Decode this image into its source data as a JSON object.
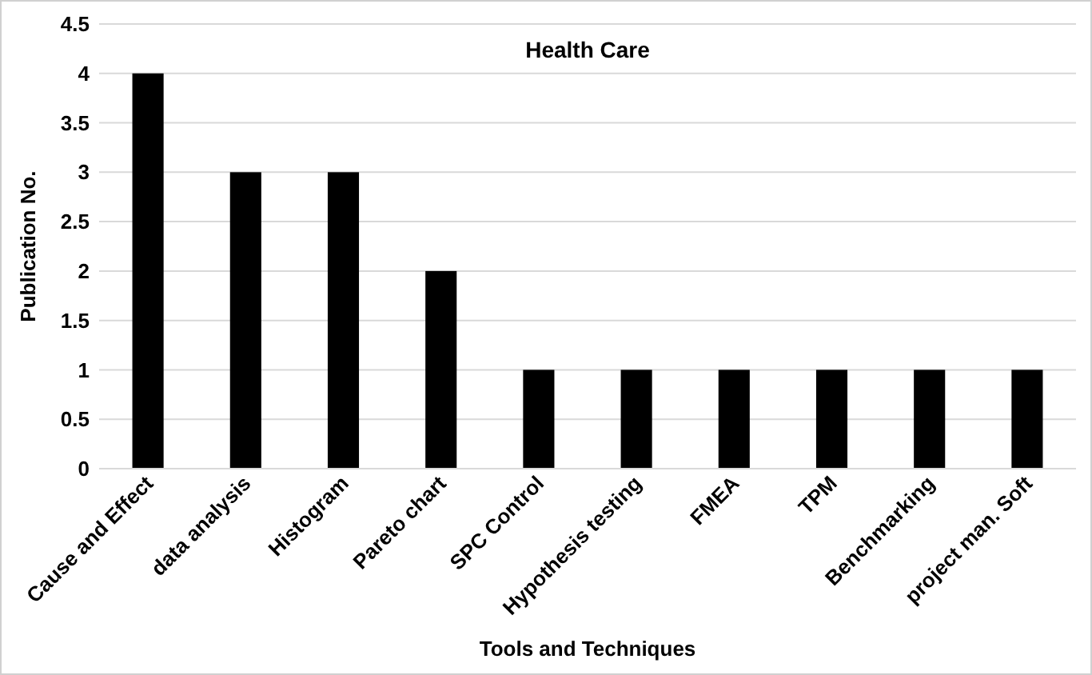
{
  "chart_data": {
    "type": "bar",
    "title": "Health Care",
    "xlabel": "Tools and Techniques",
    "ylabel": "Publication No.",
    "categories": [
      "Cause and Effect",
      "data analysis",
      "Histogram",
      "Pareto chart",
      "SPC Control",
      "Hypothesis testing",
      "FMEA",
      "TPM",
      "Benchmarking",
      "project man. Soft"
    ],
    "values": [
      4,
      3,
      3,
      2,
      1,
      1,
      1,
      1,
      1,
      1
    ],
    "color": "#000000",
    "ylim": [
      0,
      4.5
    ],
    "yticks": [
      0,
      0.5,
      1,
      1.5,
      2,
      2.5,
      3,
      3.5,
      4,
      4.5
    ],
    "grid": "y"
  }
}
